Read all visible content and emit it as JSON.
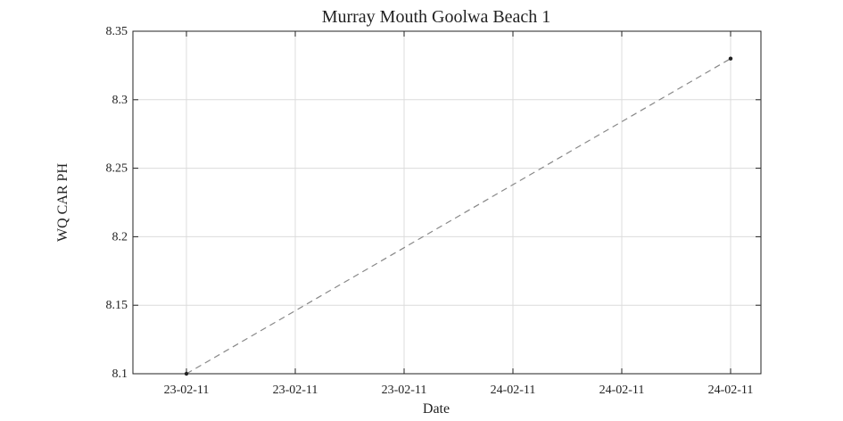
{
  "chart_data": {
    "type": "line",
    "title": "Murray Mouth Goolwa Beach 1",
    "xlabel": "Date",
    "ylabel": "WQ CAR PH",
    "grid": true,
    "x_tick_labels": [
      "23-02-11",
      "23-02-11",
      "23-02-11",
      "24-02-11",
      "24-02-11",
      "24-02-11"
    ],
    "y_ticks": [
      8.1,
      8.15,
      8.2,
      8.25,
      8.3,
      8.35
    ],
    "y_tick_labels": [
      "8.1",
      "8.15",
      "8.2",
      "8.25",
      "8.3",
      "8.35"
    ],
    "ylim": [
      8.1,
      8.35
    ],
    "series": [
      {
        "points": [
          {
            "x": "23-02-11",
            "y": 8.1
          },
          {
            "x": "24-02-11",
            "y": 8.33
          }
        ],
        "line_style": "dashed",
        "line_color": "#888888",
        "marker_color": "#222222"
      }
    ]
  }
}
